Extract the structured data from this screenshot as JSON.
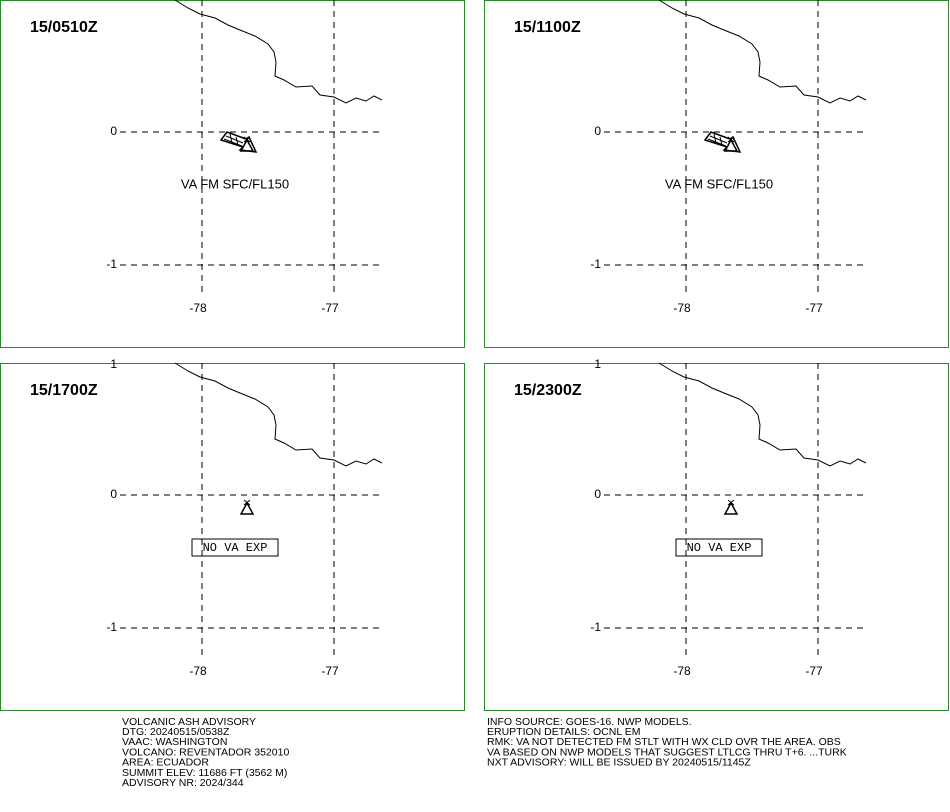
{
  "panels": [
    {
      "time": "15/0510Z",
      "annotation": "VA FM SFC/FL150",
      "ash_cloud": true,
      "lat_labels": [
        "0",
        "-1"
      ],
      "lon_labels": [
        "-78",
        "-77"
      ]
    },
    {
      "time": "15/1100Z",
      "annotation": "VA FM SFC/FL150",
      "ash_cloud": true,
      "lat_labels": [
        "0",
        "-1"
      ],
      "lon_labels": [
        "-78",
        "-77"
      ]
    },
    {
      "time": "15/1700Z",
      "annotation": "NO VA EXP",
      "ash_cloud": false,
      "lat_labels": [
        "1",
        "0",
        "-1"
      ],
      "lon_labels": [
        "-78",
        "-77"
      ]
    },
    {
      "time": "15/2300Z",
      "annotation": "NO VA EXP",
      "ash_cloud": false,
      "lat_labels": [
        "1",
        "0",
        "-1"
      ],
      "lon_labels": [
        "-78",
        "-77"
      ]
    }
  ],
  "advisory_left": [
    "VOLCANIC ASH ADVISORY",
    "DTG: 20240515/0538Z",
    "VAAC: WASHINGTON",
    "VOLCANO: REVENTADOR 352010",
    "AREA: ECUADOR",
    "SUMMIT ELEV: 11686 FT (3562 M)",
    "ADVISORY NR: 2024/344"
  ],
  "advisory_right": [
    "INFO SOURCE: GOES-16. NWP MODELS.",
    "ERUPTION DETAILS: OCNL EM",
    "RMK: VA NOT DETECTED FM STLT WITH WX CLD OVR THE AREA. OBS",
    "VA BASED ON NWP MODELS THAT SUGGEST LTLCG THRU T+6. ...TURK",
    "NXT ADVISORY: WILL BE ISSUED BY 20240515/1145Z"
  ]
}
